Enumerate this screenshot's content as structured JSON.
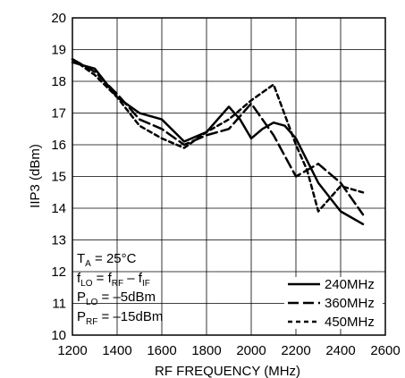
{
  "chart_data": {
    "type": "line",
    "xlabel": "RF FREQUENCY (MHz)",
    "ylabel": "IIP3 (dBm)",
    "xlim": [
      1200,
      2600
    ],
    "ylim": [
      10,
      20
    ],
    "x_ticks": [
      "1200",
      "1400",
      "1600",
      "1800",
      "2000",
      "2200",
      "2400",
      "2600"
    ],
    "y_ticks": [
      "10",
      "11",
      "12",
      "13",
      "14",
      "15",
      "16",
      "17",
      "18",
      "19",
      "20"
    ],
    "grid": true,
    "legend_position": "bottom-right",
    "series": [
      {
        "name": "240MHz",
        "style": "solid",
        "x": [
          1200,
          1250,
          1300,
          1400,
          1500,
          1600,
          1700,
          1800,
          1850,
          1900,
          1950,
          2000,
          2050,
          2100,
          2150,
          2200,
          2300,
          2400,
          2500
        ],
        "y": [
          18.6,
          18.5,
          18.4,
          17.5,
          17.0,
          16.8,
          16.1,
          16.4,
          16.8,
          17.2,
          16.8,
          16.2,
          16.5,
          16.7,
          16.6,
          16.2,
          14.8,
          13.9,
          13.5
        ]
      },
      {
        "name": "360MHz",
        "style": "long-dash",
        "x": [
          1200,
          1300,
          1400,
          1500,
          1600,
          1700,
          1800,
          1900,
          2000,
          2100,
          2200,
          2300,
          2400,
          2500
        ],
        "y": [
          18.7,
          18.3,
          17.6,
          16.8,
          16.5,
          16.0,
          16.3,
          16.5,
          17.3,
          16.3,
          15.0,
          15.4,
          14.8,
          13.8
        ]
      },
      {
        "name": "450MHz",
        "style": "short-dash",
        "x": [
          1200,
          1300,
          1400,
          1500,
          1600,
          1700,
          1800,
          1900,
          2000,
          2100,
          2200,
          2250,
          2300,
          2400,
          2500
        ],
        "y": [
          18.7,
          18.2,
          17.5,
          16.6,
          16.2,
          15.9,
          16.4,
          16.8,
          17.4,
          17.9,
          16.0,
          15.2,
          13.9,
          14.7,
          14.5
        ]
      }
    ],
    "conditions": {
      "ta": {
        "main": "T",
        "sub": "A",
        "rest": " = 25°C"
      },
      "flo": {
        "p1": "f",
        "s1": "LO",
        "p2": " = f",
        "s2": "RF",
        "p3": " – f",
        "s3": "IF"
      },
      "plo": {
        "main": "P",
        "sub": "LO",
        "rest": " = –5dBm"
      },
      "prf": {
        "main": "P",
        "sub": "RF",
        "rest": " = –15dBm"
      }
    }
  }
}
